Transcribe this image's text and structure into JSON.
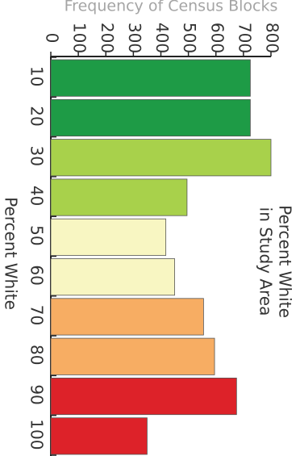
{
  "chart_data": {
    "type": "bar",
    "title": "Percent White\nin Study Area",
    "xlabel": "Percent White",
    "ylabel": "Frequency of Census Blocks",
    "ylim": [
      0,
      800
    ],
    "yticks": [
      0,
      100,
      200,
      300,
      400,
      500,
      600,
      700,
      800
    ],
    "categories": [
      "10",
      "20",
      "30",
      "40",
      "50",
      "60",
      "70",
      "80",
      "90",
      "100"
    ],
    "values": [
      725,
      725,
      800,
      495,
      418,
      450,
      555,
      595,
      675,
      350
    ],
    "bar_colors": [
      "#1e9b46",
      "#1e9b46",
      "#a8d14b",
      "#a8d14b",
      "#f8f6c2",
      "#f8f6c2",
      "#f7ad63",
      "#f7ad63",
      "#dd2229",
      "#dd2229"
    ],
    "orientation": "rotated-90-cw",
    "grid": false
  }
}
